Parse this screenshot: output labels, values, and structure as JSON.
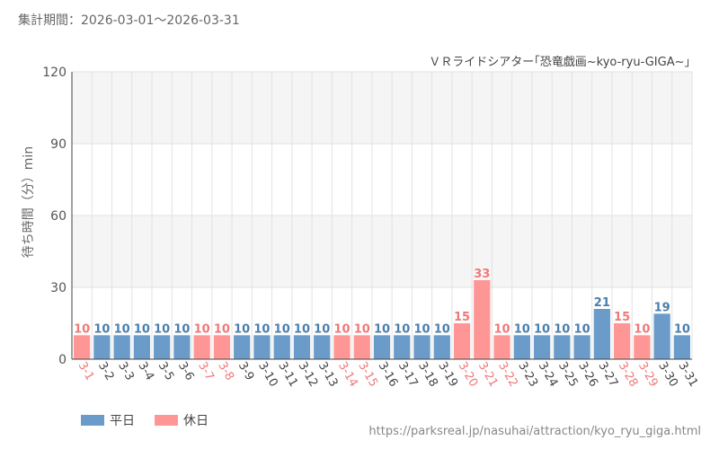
{
  "header": {
    "period": "集計期間：2026-03-01～2026-03-31",
    "attraction": "ＶＲライドシアター｢恐竜戯画~kyo-ryu-GIGA~｣"
  },
  "legend": {
    "weekday_label": "平日",
    "holiday_label": "休日"
  },
  "footer": {
    "url": "https://parksreal.jp/nasuhai/attraction/kyo_ryu_giga.html"
  },
  "colors": {
    "weekday": "#6b9bc8",
    "holiday": "#ff9696",
    "weekday_text": "#4a7fae",
    "holiday_text": "#f07878",
    "band": "#f5f5f5",
    "grid": "#e2e2e2"
  },
  "chart_data": {
    "type": "bar",
    "ylabel": "待ち時間（分）min",
    "ylim": [
      0,
      120
    ],
    "yticks": [
      0,
      30,
      60,
      90,
      120
    ],
    "categories": [
      "3-1",
      "3-2",
      "3-3",
      "3-4",
      "3-5",
      "3-6",
      "3-7",
      "3-8",
      "3-9",
      "3-10",
      "3-11",
      "3-12",
      "3-13",
      "3-14",
      "3-15",
      "3-16",
      "3-17",
      "3-18",
      "3-19",
      "3-20",
      "3-21",
      "3-22",
      "3-23",
      "3-24",
      "3-25",
      "3-26",
      "3-27",
      "3-28",
      "3-29",
      "3-30",
      "3-31"
    ],
    "values": [
      10,
      10,
      10,
      10,
      10,
      10,
      10,
      10,
      10,
      10,
      10,
      10,
      10,
      10,
      10,
      10,
      10,
      10,
      10,
      15,
      33,
      10,
      10,
      10,
      10,
      10,
      21,
      15,
      10,
      19,
      10
    ],
    "day_type": [
      "holiday",
      "weekday",
      "weekday",
      "weekday",
      "weekday",
      "weekday",
      "holiday",
      "holiday",
      "weekday",
      "weekday",
      "weekday",
      "weekday",
      "weekday",
      "holiday",
      "holiday",
      "weekday",
      "weekday",
      "weekday",
      "weekday",
      "holiday",
      "holiday",
      "holiday",
      "weekday",
      "weekday",
      "weekday",
      "weekday",
      "weekday",
      "holiday",
      "holiday",
      "weekday",
      "weekday"
    ]
  }
}
